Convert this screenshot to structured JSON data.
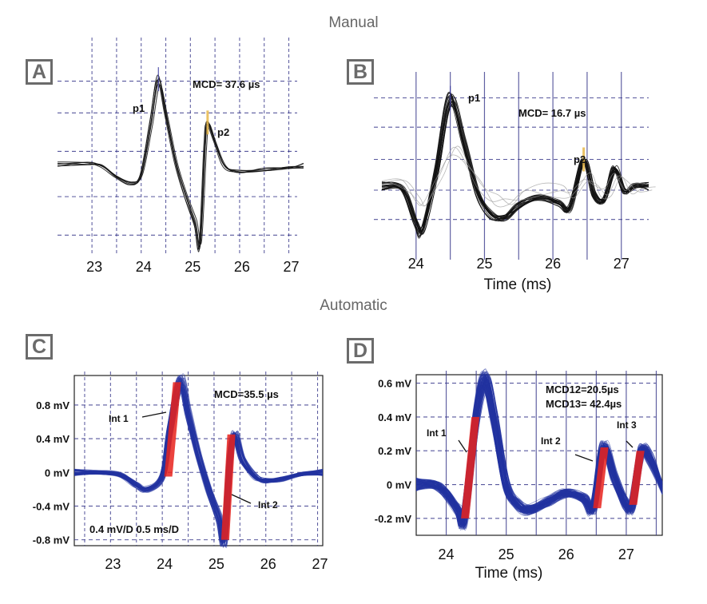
{
  "sections": {
    "manual": "Manual",
    "automatic": "Automatic"
  },
  "colors": {
    "grid": "#3a3a8c",
    "trace_manual": "#111111",
    "trace_auto": "#2233a0",
    "highlight": "#e8221c",
    "p2_marker": "#e8b84a"
  },
  "chart_data": [
    {
      "panel": "A",
      "type": "line",
      "title": "Manual",
      "annotation": "MCD= 37.6 µs",
      "peaks": [
        {
          "label": "p1",
          "x": 24.35
        },
        {
          "label": "p2",
          "x": 25.35
        }
      ],
      "xlabel": "",
      "xticks": [
        "23",
        "24",
        "25",
        "26",
        "27"
      ],
      "xlim": [
        22.3,
        27.3
      ],
      "ylim": [
        -0.85,
        1.1
      ],
      "series": [
        {
          "name": "traces",
          "x": [
            22.3,
            22.9,
            23.2,
            23.5,
            23.8,
            24.0,
            24.2,
            24.35,
            24.5,
            24.7,
            24.9,
            25.1,
            25.2,
            25.3,
            25.35,
            25.5,
            25.7,
            26.0,
            26.5,
            27.0,
            27.3
          ],
          "y": [
            0.02,
            0.02,
            0.0,
            -0.12,
            -0.18,
            -0.1,
            0.45,
            0.9,
            0.55,
            0.05,
            -0.3,
            -0.6,
            -0.82,
            0.2,
            0.45,
            0.25,
            0.0,
            -0.06,
            -0.04,
            -0.01,
            0.0
          ]
        }
      ]
    },
    {
      "panel": "B",
      "type": "line",
      "title": "Manual",
      "annotation": "MCD= 16.7 µs",
      "peaks": [
        {
          "label": "p1",
          "x": 24.5
        },
        {
          "label": "p2",
          "x": 26.45
        }
      ],
      "xlabel": "Time (ms)",
      "xticks": [
        "24",
        "25",
        "26",
        "27"
      ],
      "xlim": [
        23.5,
        27.4
      ],
      "ylim": [
        -0.45,
        0.75
      ],
      "series": [
        {
          "name": "traces",
          "x": [
            23.5,
            23.8,
            24.0,
            24.1,
            24.3,
            24.5,
            24.7,
            24.9,
            25.1,
            25.3,
            25.5,
            25.8,
            26.1,
            26.25,
            26.45,
            26.6,
            26.75,
            26.9,
            27.05,
            27.2,
            27.4
          ],
          "y": [
            0.0,
            -0.02,
            -0.25,
            -0.3,
            0.1,
            0.6,
            0.3,
            -0.05,
            -0.2,
            -0.22,
            -0.14,
            -0.08,
            -0.12,
            -0.15,
            0.18,
            -0.06,
            -0.1,
            0.12,
            -0.04,
            0.0,
            0.0
          ]
        }
      ]
    },
    {
      "panel": "C",
      "type": "line",
      "title": "Automatic",
      "annotation": "MCD=35.5 µs",
      "intervals": [
        {
          "label": "Int 1",
          "x": [
            24.1,
            24.3
          ]
        },
        {
          "label": "Int 2",
          "x": [
            25.2,
            25.35
          ]
        }
      ],
      "scale_note": "0.4 mV/D  0.5 ms/D",
      "xlabel": "",
      "xticks": [
        "23",
        "24",
        "25",
        "26",
        "27"
      ],
      "yticks": [
        "0.8 mV",
        "0.4 mV",
        "0 mV",
        "-0.4 mV",
        "-0.8 mV"
      ],
      "yvalues": [
        0.8,
        0.4,
        0,
        -0.4,
        -0.8
      ],
      "xlim": [
        22.3,
        27.1
      ],
      "ylim": [
        -0.87,
        1.15
      ],
      "series": [
        {
          "name": "traces",
          "x": [
            22.3,
            22.8,
            23.2,
            23.5,
            23.7,
            24.0,
            24.15,
            24.35,
            24.5,
            24.7,
            24.9,
            25.1,
            25.2,
            25.3,
            25.4,
            25.55,
            25.8,
            26.0,
            26.3,
            26.7,
            27.1
          ],
          "y": [
            0.0,
            0.0,
            -0.03,
            -0.15,
            -0.2,
            -0.05,
            0.5,
            1.07,
            0.7,
            0.2,
            -0.2,
            -0.55,
            -0.8,
            0.1,
            0.45,
            0.15,
            -0.05,
            -0.1,
            -0.08,
            -0.02,
            0.0
          ]
        }
      ]
    },
    {
      "panel": "D",
      "type": "line",
      "title": "Automatic",
      "annotation": [
        "MCD12=20.5µs",
        "MCD13= 42.4µs"
      ],
      "intervals": [
        {
          "label": "Int 1",
          "x": [
            24.3,
            24.5
          ]
        },
        {
          "label": "Int 2",
          "x": [
            26.5,
            26.65
          ]
        },
        {
          "label": "Int 3",
          "x": [
            27.1,
            27.25
          ]
        }
      ],
      "xlabel": "Time (ms)",
      "xticks": [
        "24",
        "25",
        "26",
        "27"
      ],
      "yticks": [
        "0.6 mV",
        "0.4 mV",
        "0.2 mV",
        "0 mV",
        "-0.2 mV"
      ],
      "yvalues": [
        0.6,
        0.4,
        0.2,
        0,
        -0.2
      ],
      "xlim": [
        23.5,
        27.6
      ],
      "ylim": [
        -0.3,
        0.65
      ],
      "series": [
        {
          "name": "traces",
          "x": [
            23.5,
            23.8,
            24.0,
            24.2,
            24.3,
            24.5,
            24.65,
            24.8,
            25.0,
            25.2,
            25.4,
            25.7,
            26.0,
            26.3,
            26.45,
            26.62,
            26.8,
            27.0,
            27.1,
            27.25,
            27.4,
            27.6
          ],
          "y": [
            0.0,
            0.0,
            -0.05,
            -0.15,
            -0.2,
            0.4,
            0.62,
            0.4,
            0.0,
            -0.12,
            -0.15,
            -0.1,
            -0.05,
            -0.08,
            -0.14,
            0.22,
            0.05,
            -0.12,
            -0.12,
            0.2,
            0.15,
            -0.02
          ]
        }
      ]
    }
  ]
}
